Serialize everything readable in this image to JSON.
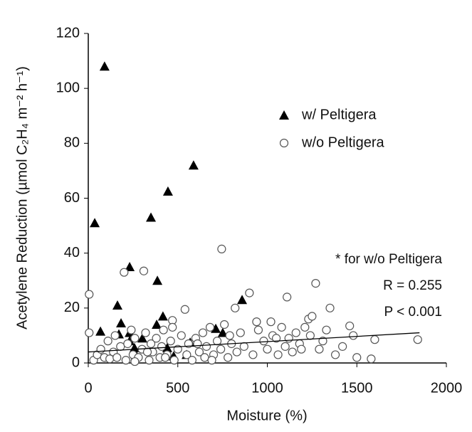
{
  "chart_data": {
    "type": "scatter",
    "xlabel": "Moisture (%)",
    "ylabel": "Acetylene Reduction (µmol C₂H₄ m⁻² h⁻¹)",
    "xlim": [
      0,
      2000
    ],
    "xticks": [
      0,
      500,
      1000,
      1500,
      2000
    ],
    "ylim": [
      0,
      120
    ],
    "yticks": [
      0,
      20,
      40,
      60,
      80,
      100,
      120
    ],
    "legend": "upper right",
    "series": [
      {
        "name": "w/ Peltigera",
        "marker": "triangle",
        "color": "#000000",
        "x": [
          36,
          91,
          68,
          163,
          171,
          183,
          147,
          231,
          231,
          231,
          258,
          266,
          302,
          350,
          382,
          386,
          417,
          441,
          445,
          477,
          549,
          569,
          588,
          712,
          751,
          859
        ],
        "y": [
          51,
          108,
          11.5,
          21,
          10.5,
          14.5,
          3,
          11,
          8,
          35,
          5.5,
          3,
          9,
          53,
          14,
          30,
          17,
          5.5,
          62.5,
          2.5,
          3,
          7.5,
          72,
          12.5,
          11,
          23
        ]
      },
      {
        "name": "w/o Peltigera",
        "marker": "circle",
        "color": "#555555",
        "x": [
          5,
          5,
          30,
          50,
          70,
          90,
          110,
          120,
          140,
          150,
          160,
          180,
          200,
          210,
          220,
          240,
          250,
          260,
          280,
          300,
          310,
          320,
          340,
          350,
          360,
          380,
          400,
          410,
          420,
          440,
          460,
          470,
          470,
          480,
          500,
          520,
          540,
          550,
          560,
          580,
          600,
          620,
          640,
          650,
          660,
          680,
          700,
          720,
          740,
          745,
          760,
          780,
          790,
          800,
          820,
          830,
          850,
          870,
          900,
          920,
          940,
          950,
          980,
          1000,
          1020,
          1030,
          1060,
          1080,
          1100,
          1110,
          1120,
          1140,
          1160,
          1180,
          1210,
          1230,
          1240,
          1250,
          1270,
          1290,
          1310,
          1350,
          1380,
          1420,
          1460,
          1480,
          1500,
          1580,
          1600,
          1840,
          260,
          330,
          430,
          610,
          690,
          1050,
          1190,
          1330
        ],
        "y": [
          25,
          11,
          1,
          3,
          5,
          2,
          8,
          1.5,
          4,
          10,
          2,
          6,
          33,
          1,
          7,
          12,
          3,
          9,
          2,
          5,
          33.5,
          11,
          1,
          7,
          4,
          9,
          2,
          6,
          12,
          3,
          8,
          15.5,
          13,
          1,
          5,
          10,
          19.5,
          3,
          7,
          1,
          9,
          4,
          11,
          2,
          6,
          13,
          3,
          8,
          5,
          41.5,
          14,
          2,
          10,
          7,
          20,
          4,
          11,
          6,
          25.5,
          3,
          15,
          12,
          8,
          5,
          15,
          10,
          3,
          13,
          6,
          24,
          9,
          4,
          11,
          7,
          13,
          16,
          10,
          17,
          29,
          5,
          8,
          20,
          3,
          6,
          13.5,
          10,
          2,
          1.5,
          8.5,
          8.5,
          0.5,
          4,
          2,
          7,
          1,
          9,
          5,
          12
        ]
      }
    ],
    "trendline": {
      "x": [
        0,
        1850
      ],
      "y": [
        4,
        11
      ]
    },
    "annotations": [
      "* for w/o Peltigera",
      "R = 0.255",
      "P < 0.001"
    ]
  }
}
